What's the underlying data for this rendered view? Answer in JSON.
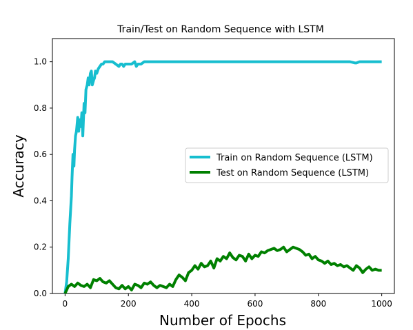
{
  "chart_data": {
    "type": "line",
    "title": "Train/Test on Random Sequence with LSTM",
    "xlabel": "Number of Epochs",
    "ylabel": "Accuracy",
    "xlim": [
      -40,
      1040
    ],
    "ylim": [
      0,
      1.1
    ],
    "xticks": [
      0,
      200,
      400,
      600,
      800,
      1000
    ],
    "yticks": [
      0.0,
      0.2,
      0.4,
      0.6,
      0.8,
      1.0
    ],
    "xtick_labels": [
      "0",
      "200",
      "400",
      "600",
      "800",
      "1000"
    ],
    "ytick_labels": [
      "0.0",
      "0.2",
      "0.4",
      "0.6",
      "0.8",
      "1.0"
    ],
    "grid": false,
    "legend_position": "center-right",
    "series": [
      {
        "name": "Train on Random Sequence (LSTM)",
        "color": "#17becf",
        "x": [
          0,
          5,
          10,
          15,
          20,
          22,
          25,
          28,
          30,
          33,
          36,
          40,
          43,
          46,
          50,
          53,
          56,
          60,
          63,
          66,
          70,
          73,
          76,
          80,
          83,
          86,
          90,
          93,
          96,
          100,
          105,
          110,
          115,
          120,
          125,
          130,
          140,
          150,
          160,
          170,
          175,
          180,
          185,
          190,
          200,
          210,
          220,
          225,
          230,
          240,
          250,
          260,
          280,
          300,
          350,
          400,
          450,
          500,
          600,
          700,
          800,
          900,
          915,
          920,
          930,
          950,
          1000
        ],
        "y": [
          0.0,
          0.05,
          0.15,
          0.3,
          0.42,
          0.5,
          0.6,
          0.55,
          0.62,
          0.68,
          0.7,
          0.76,
          0.7,
          0.75,
          0.72,
          0.78,
          0.68,
          0.82,
          0.78,
          0.88,
          0.9,
          0.93,
          0.9,
          0.95,
          0.96,
          0.9,
          0.92,
          0.93,
          0.96,
          0.95,
          0.97,
          0.98,
          0.99,
          0.99,
          1.0,
          1.0,
          1.0,
          1.0,
          0.99,
          0.98,
          0.99,
          0.99,
          0.98,
          0.99,
          0.99,
          0.99,
          1.0,
          0.98,
          0.99,
          0.99,
          1.0,
          1.0,
          1.0,
          1.0,
          1.0,
          1.0,
          1.0,
          1.0,
          1.0,
          1.0,
          1.0,
          1.0,
          0.995,
          0.995,
          1.0,
          1.0,
          1.0
        ]
      },
      {
        "name": "Test on Random Sequence (LSTM)",
        "color": "#008000",
        "x": [
          0,
          10,
          20,
          30,
          40,
          50,
          60,
          70,
          80,
          90,
          100,
          110,
          120,
          130,
          140,
          150,
          160,
          170,
          180,
          190,
          200,
          210,
          220,
          230,
          240,
          250,
          260,
          270,
          280,
          290,
          300,
          310,
          320,
          330,
          340,
          350,
          360,
          370,
          380,
          390,
          400,
          410,
          420,
          430,
          440,
          450,
          460,
          470,
          480,
          490,
          500,
          510,
          520,
          530,
          540,
          550,
          560,
          570,
          580,
          590,
          600,
          610,
          620,
          630,
          640,
          650,
          660,
          670,
          680,
          690,
          700,
          710,
          720,
          730,
          740,
          750,
          760,
          770,
          780,
          790,
          800,
          810,
          820,
          830,
          840,
          850,
          860,
          870,
          880,
          890,
          900,
          910,
          920,
          930,
          940,
          950,
          960,
          970,
          980,
          990,
          1000
        ],
        "y": [
          0.0,
          0.03,
          0.04,
          0.03,
          0.045,
          0.035,
          0.03,
          0.04,
          0.025,
          0.06,
          0.055,
          0.065,
          0.05,
          0.045,
          0.055,
          0.04,
          0.025,
          0.02,
          0.035,
          0.02,
          0.03,
          0.015,
          0.04,
          0.035,
          0.025,
          0.045,
          0.04,
          0.05,
          0.035,
          0.025,
          0.035,
          0.03,
          0.025,
          0.04,
          0.03,
          0.06,
          0.08,
          0.07,
          0.055,
          0.09,
          0.1,
          0.12,
          0.105,
          0.13,
          0.115,
          0.12,
          0.14,
          0.11,
          0.15,
          0.14,
          0.16,
          0.15,
          0.175,
          0.155,
          0.145,
          0.165,
          0.16,
          0.14,
          0.17,
          0.15,
          0.165,
          0.16,
          0.18,
          0.175,
          0.185,
          0.19,
          0.195,
          0.185,
          0.19,
          0.2,
          0.18,
          0.19,
          0.2,
          0.195,
          0.19,
          0.18,
          0.165,
          0.17,
          0.15,
          0.16,
          0.145,
          0.14,
          0.13,
          0.14,
          0.125,
          0.13,
          0.12,
          0.125,
          0.115,
          0.12,
          0.11,
          0.1,
          0.12,
          0.11,
          0.09,
          0.105,
          0.115,
          0.1,
          0.105,
          0.1,
          0.1
        ]
      }
    ]
  }
}
